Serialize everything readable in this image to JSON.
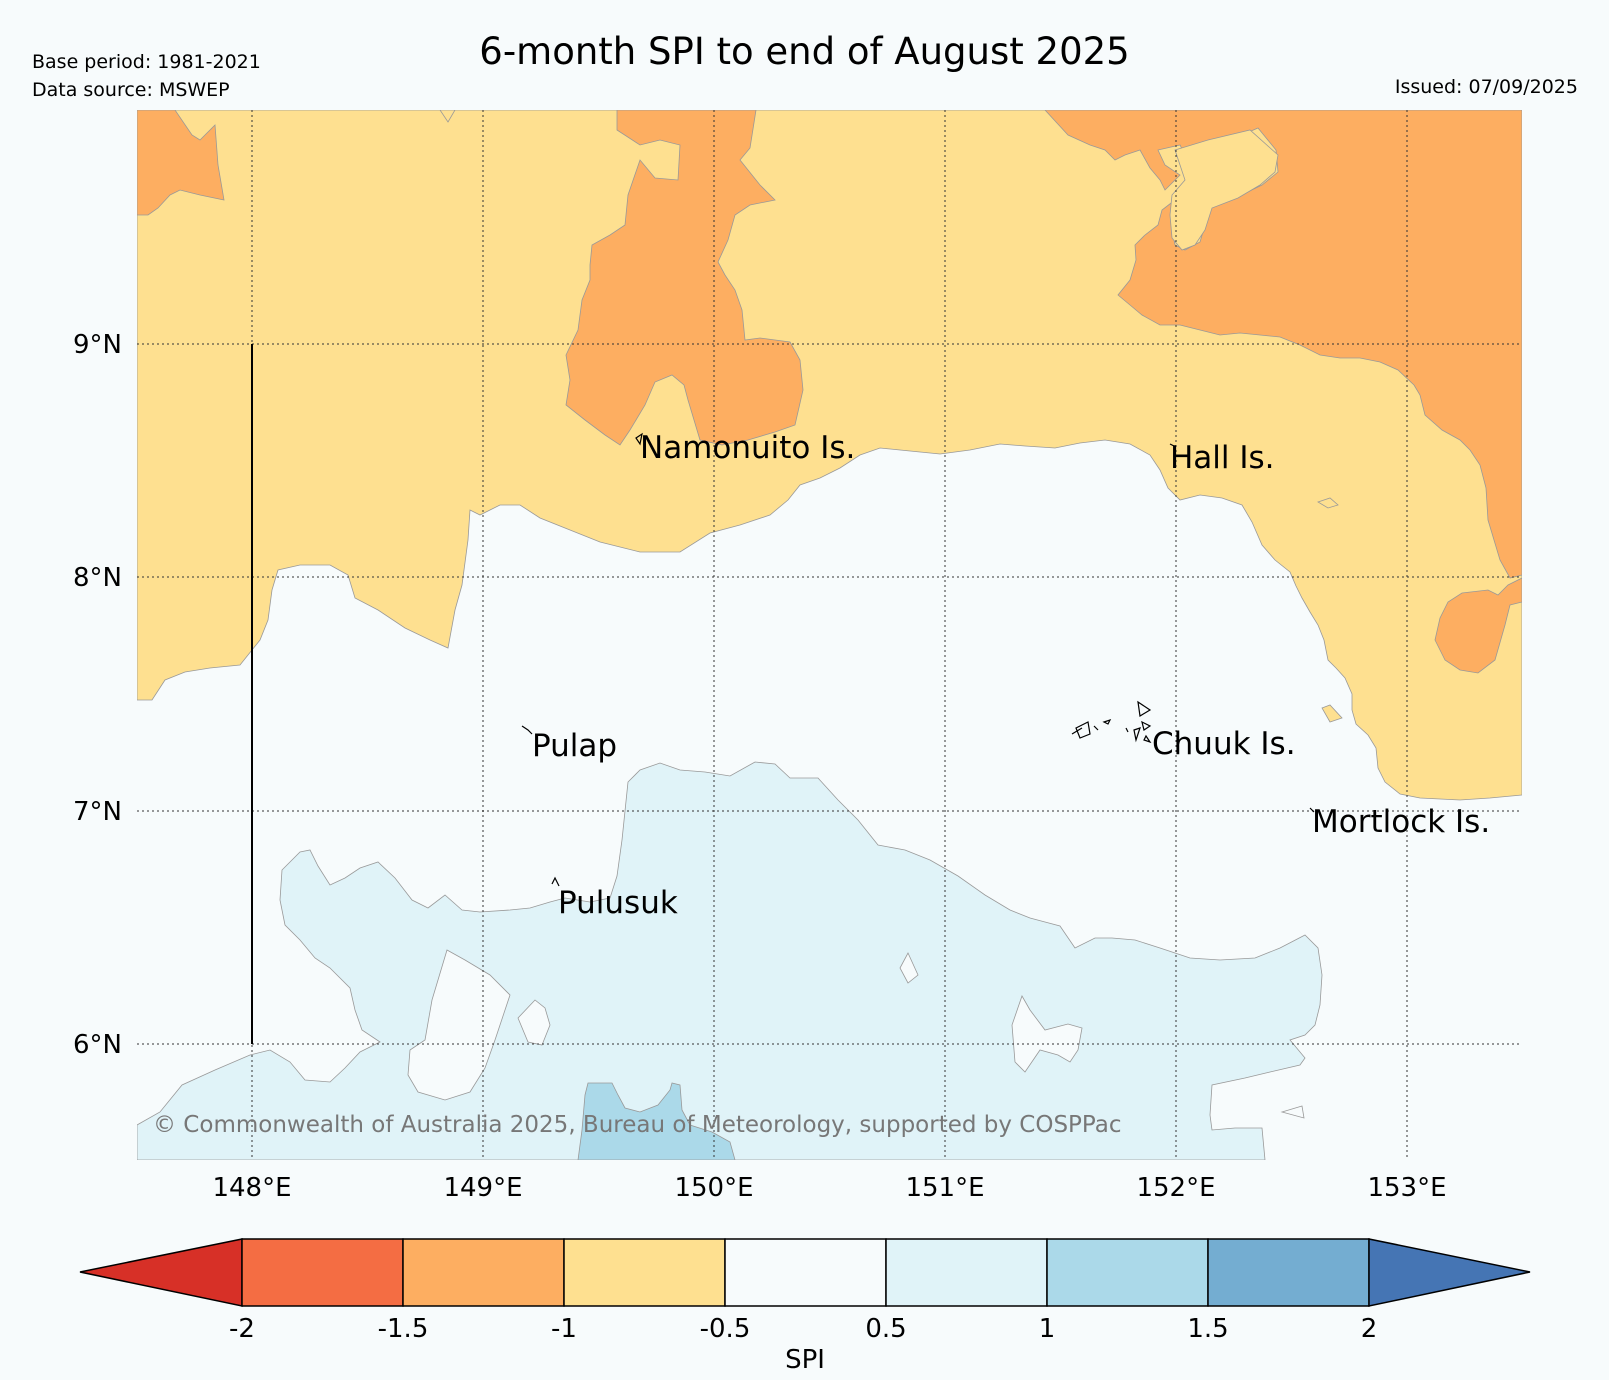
{
  "header": {
    "base_period": "Base period: 1981-2021",
    "data_source": "Data source: MSWEP",
    "title": "6-month SPI to end of August 2025",
    "issued": "Issued: 07/09/2025"
  },
  "map": {
    "lat_labels": [
      "9°N",
      "8°N",
      "7°N",
      "6°N"
    ],
    "lon_labels": [
      "148°E",
      "149°E",
      "150°E",
      "151°E",
      "152°E",
      "153°E"
    ],
    "extent": {
      "lon_min": 147.5,
      "lon_max": 153.5,
      "lat_min": 5.5,
      "lat_max": 10.0
    },
    "places": [
      {
        "name": "Namonuito Is.",
        "lon": 149.62,
        "lat": 8.6
      },
      {
        "name": "Hall Is.",
        "lon": 151.97,
        "lat": 8.58
      },
      {
        "name": "Pulap",
        "lon": 149.2,
        "lat": 7.36
      },
      {
        "name": "Chuuk Is.",
        "lon": 151.85,
        "lat": 7.33
      },
      {
        "name": "Pulusuk",
        "lon": 149.3,
        "lat": 6.7
      },
      {
        "name": "Mortlock Is.",
        "lon": 152.6,
        "lat": 7.02
      }
    ],
    "copyright": "© Commonwealth of Australia 2025, Bureau of Meteorology, supported by COSPPac"
  },
  "colorbar": {
    "label": "SPI",
    "ticks": [
      "-2",
      "-1.5",
      "-1",
      "-0.5",
      "0.5",
      "1",
      "1.5",
      "2"
    ],
    "colors": {
      "below": "#d73027",
      "c1": "#f46d43",
      "c2": "#fdae61",
      "c3": "#fee090",
      "c4": "#f7fbfc",
      "c5": "#e0f3f8",
      "c6": "#abd9e9",
      "c7": "#74add1",
      "above": "#4575b4"
    }
  }
}
